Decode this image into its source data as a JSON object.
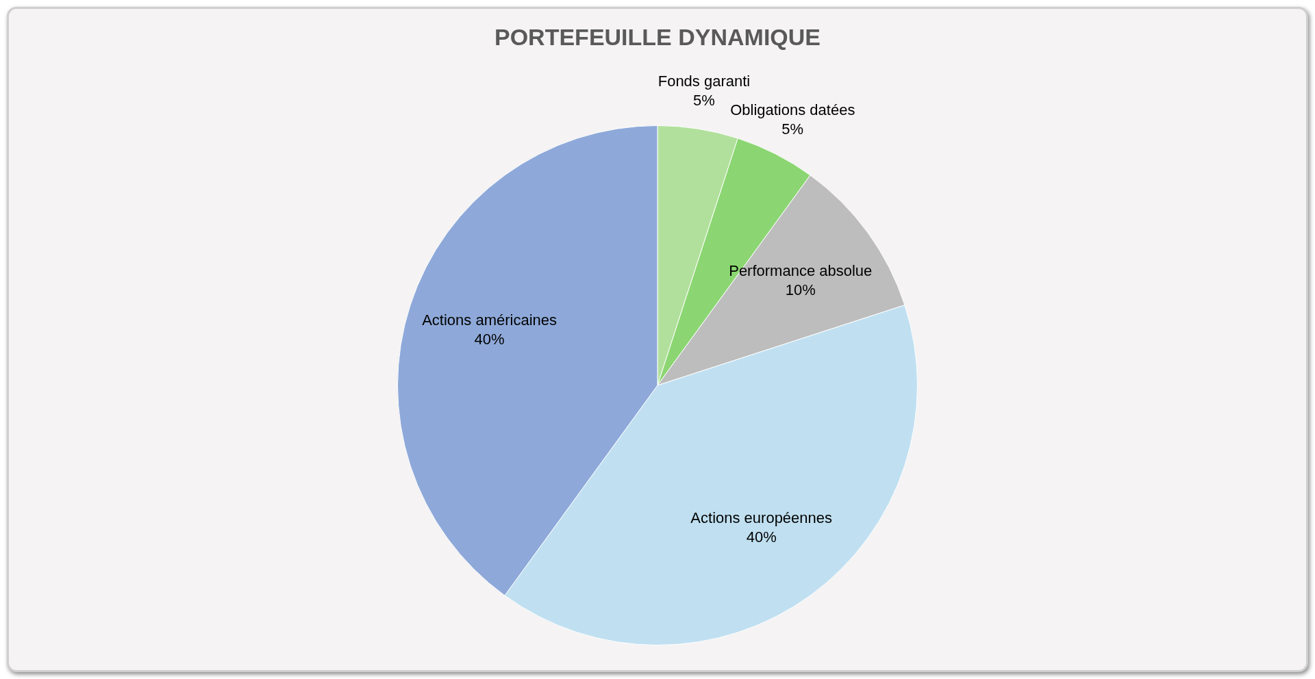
{
  "chart_data": {
    "type": "pie",
    "title": "PORTEFEUILLE DYNAMIQUE",
    "categories": [
      "Fonds garanti",
      "Obligations datées",
      "Performance absolue",
      "Actions européennes",
      "Actions américaines"
    ],
    "values": [
      5,
      5,
      10,
      40,
      40
    ],
    "colors": [
      "#b1e09c",
      "#8bd672",
      "#bdbdbd",
      "#c0e0f1",
      "#8ea9d9"
    ],
    "value_labels": [
      "5%",
      "5%",
      "10%",
      "40%",
      "40%"
    ],
    "legend": false
  }
}
